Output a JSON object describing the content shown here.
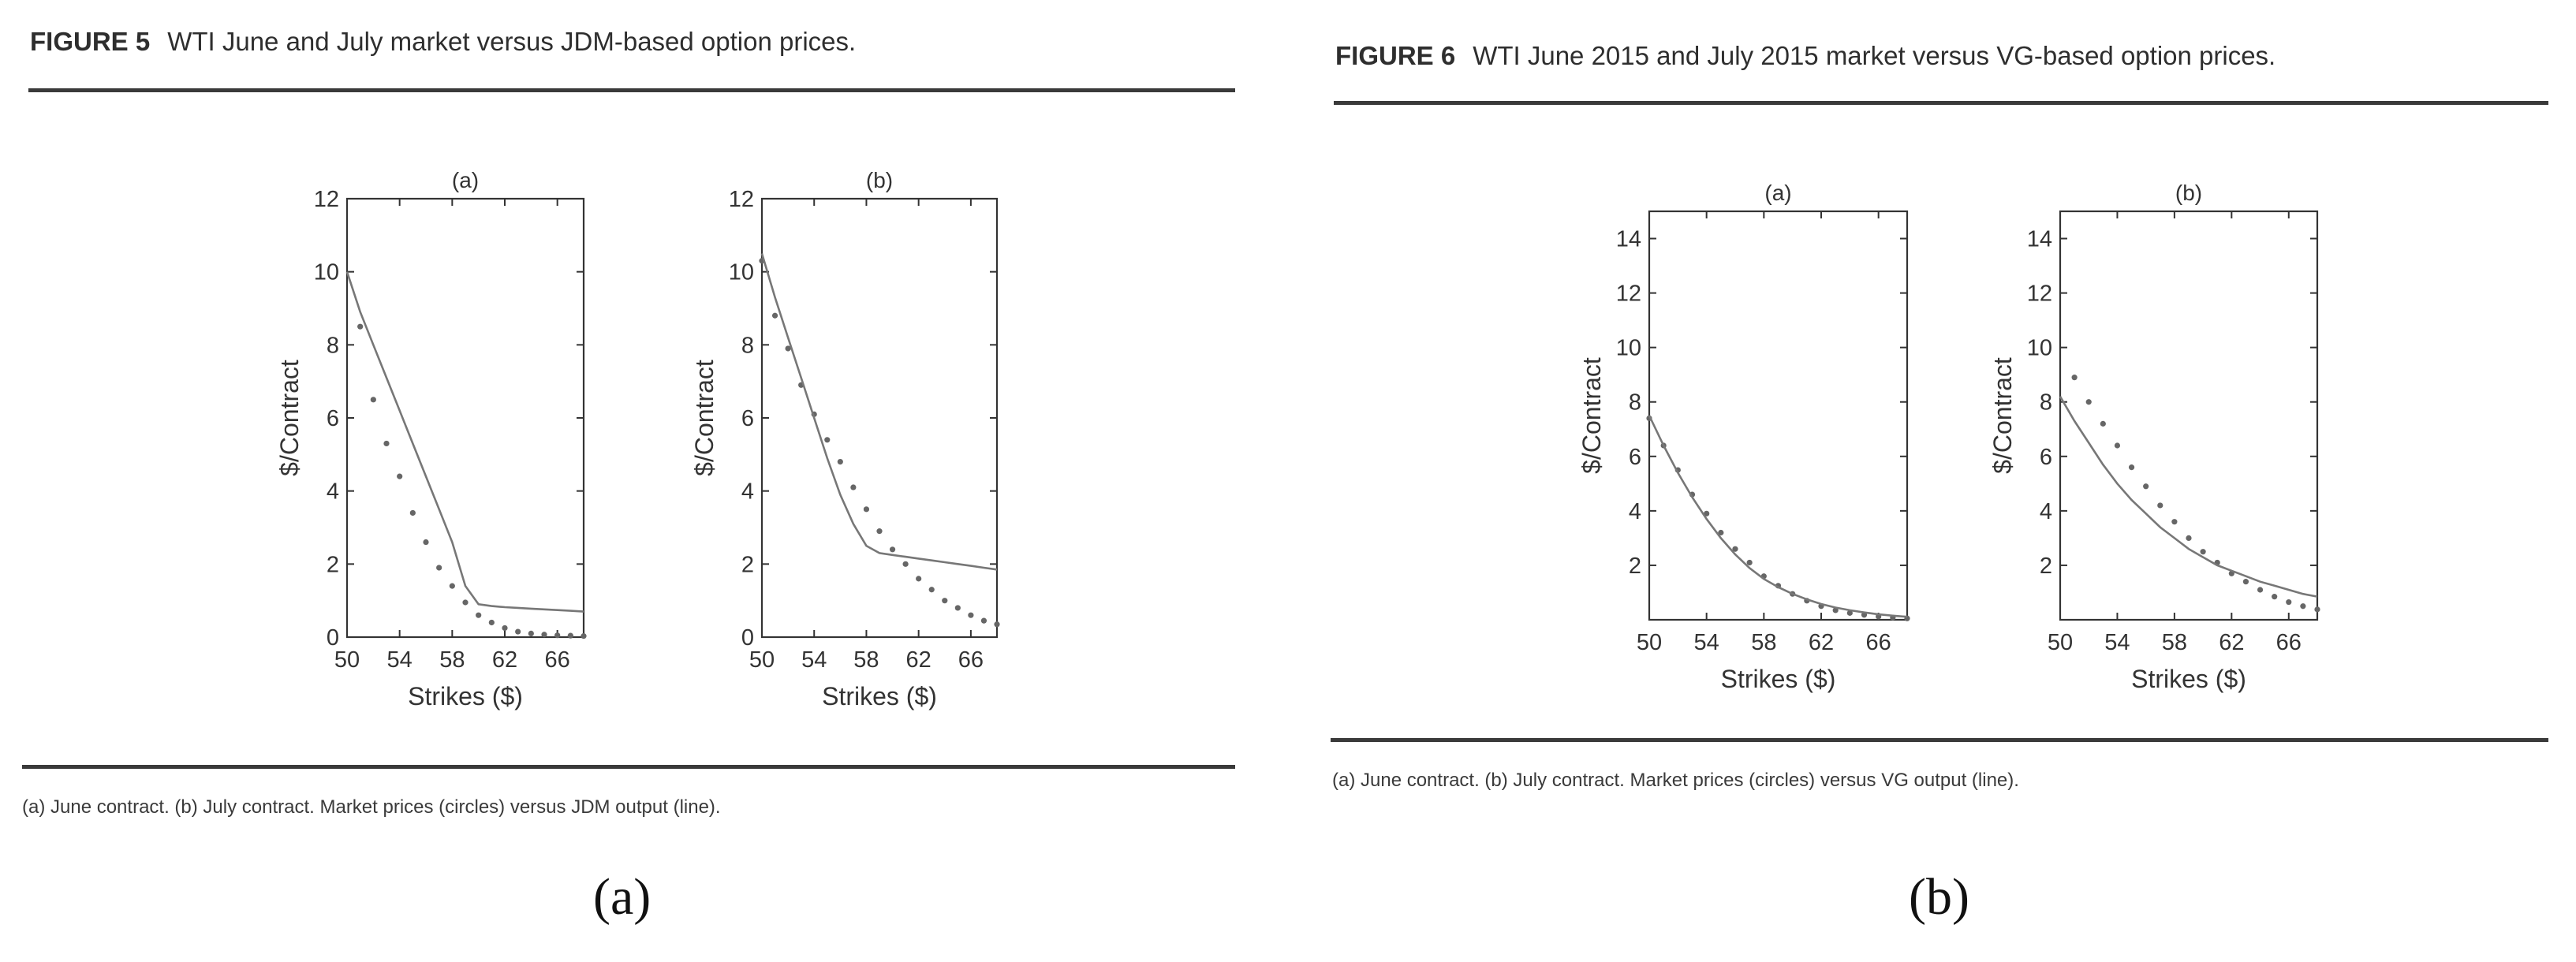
{
  "left": {
    "figure_number": "FIGURE 5",
    "figure_title": "WTI June and July market versus JDM-based option prices.",
    "caption": "(a) June contract. (b) July contract. Market prices (circles) versus JDM output (line).",
    "sublabel": "(a)"
  },
  "right": {
    "figure_number": "FIGURE 6",
    "figure_title": "WTI June 2015 and July 2015 market versus VG-based option prices.",
    "caption": "(a) June contract. (b) July contract. Market prices (circles) versus VG output (line).",
    "sublabel": "(b)"
  },
  "colors": {
    "line": "#777777",
    "marker": "#666666",
    "axis": "#333333",
    "rule": "#3a3a3a"
  },
  "chart_data": [
    {
      "type": "line",
      "figure": "FIGURE 5",
      "title": "(a)",
      "xlabel": "Strikes ($)",
      "ylabel": "$/Contract",
      "xlim": [
        50,
        68
      ],
      "ylim": [
        0,
        12
      ],
      "xticks": [
        50,
        54,
        58,
        62,
        66
      ],
      "yticks": [
        0,
        2,
        4,
        6,
        8,
        10,
        12
      ],
      "x": [
        50,
        51,
        52,
        53,
        54,
        55,
        56,
        57,
        58,
        59,
        60,
        61,
        62,
        63,
        64,
        65,
        66,
        67,
        68
      ],
      "series": [
        {
          "name": "market",
          "style": "markers",
          "values": [
            null,
            8.5,
            6.5,
            5.3,
            4.4,
            3.4,
            2.6,
            1.9,
            1.4,
            0.95,
            0.6,
            0.4,
            0.25,
            0.15,
            0.1,
            0.07,
            0.05,
            0.04,
            0.03
          ]
        },
        {
          "name": "model",
          "style": "line",
          "values": [
            10.0,
            8.9,
            8.0,
            7.1,
            6.2,
            5.3,
            4.4,
            3.5,
            2.6,
            1.4,
            0.9,
            0.85,
            0.82,
            0.8,
            0.78,
            0.76,
            0.74,
            0.72,
            0.7
          ]
        }
      ]
    },
    {
      "type": "line",
      "figure": "FIGURE 5",
      "title": "(b)",
      "xlabel": "Strikes ($)",
      "ylabel": "$/Contract",
      "xlim": [
        50,
        68
      ],
      "ylim": [
        0,
        12
      ],
      "xticks": [
        50,
        54,
        58,
        62,
        66
      ],
      "yticks": [
        0,
        2,
        4,
        6,
        8,
        10,
        12
      ],
      "x": [
        50,
        51,
        52,
        53,
        54,
        55,
        56,
        57,
        58,
        59,
        60,
        61,
        62,
        63,
        64,
        65,
        66,
        67,
        68
      ],
      "series": [
        {
          "name": "market",
          "style": "markers",
          "values": [
            10.3,
            8.8,
            7.9,
            6.9,
            6.1,
            5.4,
            4.8,
            4.1,
            3.5,
            2.9,
            2.4,
            2.0,
            1.6,
            1.3,
            1.0,
            0.8,
            0.6,
            0.45,
            0.35
          ]
        },
        {
          "name": "model",
          "style": "line",
          "values": [
            10.5,
            9.3,
            8.2,
            7.1,
            6.0,
            4.9,
            3.9,
            3.1,
            2.5,
            2.3,
            2.25,
            2.2,
            2.15,
            2.1,
            2.05,
            2.0,
            1.95,
            1.9,
            1.85
          ]
        }
      ]
    },
    {
      "type": "line",
      "figure": "FIGURE 6",
      "title": "(a)",
      "xlabel": "Strikes ($)",
      "ylabel": "$/Contract",
      "xlim": [
        50,
        68
      ],
      "ylim": [
        0,
        15
      ],
      "xticks": [
        50,
        54,
        58,
        62,
        66
      ],
      "yticks": [
        2,
        4,
        6,
        8,
        10,
        12,
        14
      ],
      "x": [
        50,
        51,
        52,
        53,
        54,
        55,
        56,
        57,
        58,
        59,
        60,
        61,
        62,
        63,
        64,
        65,
        66,
        67,
        68
      ],
      "series": [
        {
          "name": "market",
          "style": "markers",
          "values": [
            7.4,
            6.4,
            5.5,
            4.6,
            3.9,
            3.2,
            2.6,
            2.1,
            1.6,
            1.25,
            0.95,
            0.7,
            0.5,
            0.35,
            0.25,
            0.18,
            0.12,
            0.08,
            0.05
          ]
        },
        {
          "name": "model",
          "style": "line",
          "values": [
            7.5,
            6.4,
            5.4,
            4.5,
            3.7,
            3.0,
            2.4,
            1.9,
            1.5,
            1.2,
            0.95,
            0.75,
            0.58,
            0.45,
            0.35,
            0.27,
            0.2,
            0.15,
            0.11
          ]
        }
      ]
    },
    {
      "type": "line",
      "figure": "FIGURE 6",
      "title": "(b)",
      "xlabel": "Strikes ($)",
      "ylabel": "$/Contract",
      "xlim": [
        50,
        68
      ],
      "ylim": [
        0,
        15
      ],
      "xticks": [
        50,
        54,
        58,
        62,
        66
      ],
      "yticks": [
        2,
        4,
        6,
        8,
        10,
        12,
        14
      ],
      "x": [
        50,
        51,
        52,
        53,
        54,
        55,
        56,
        57,
        58,
        59,
        60,
        61,
        62,
        63,
        64,
        65,
        66,
        67,
        68
      ],
      "series": [
        {
          "name": "market",
          "style": "markers",
          "values": [
            null,
            8.9,
            8.0,
            7.2,
            6.4,
            5.6,
            4.9,
            4.2,
            3.6,
            3.0,
            2.5,
            2.1,
            1.7,
            1.4,
            1.1,
            0.85,
            0.65,
            0.5,
            0.38
          ]
        },
        {
          "name": "model",
          "style": "line",
          "values": [
            8.2,
            7.3,
            6.5,
            5.7,
            5.0,
            4.4,
            3.9,
            3.4,
            3.0,
            2.6,
            2.3,
            2.0,
            1.8,
            1.6,
            1.4,
            1.25,
            1.1,
            0.95,
            0.85
          ]
        }
      ]
    }
  ]
}
